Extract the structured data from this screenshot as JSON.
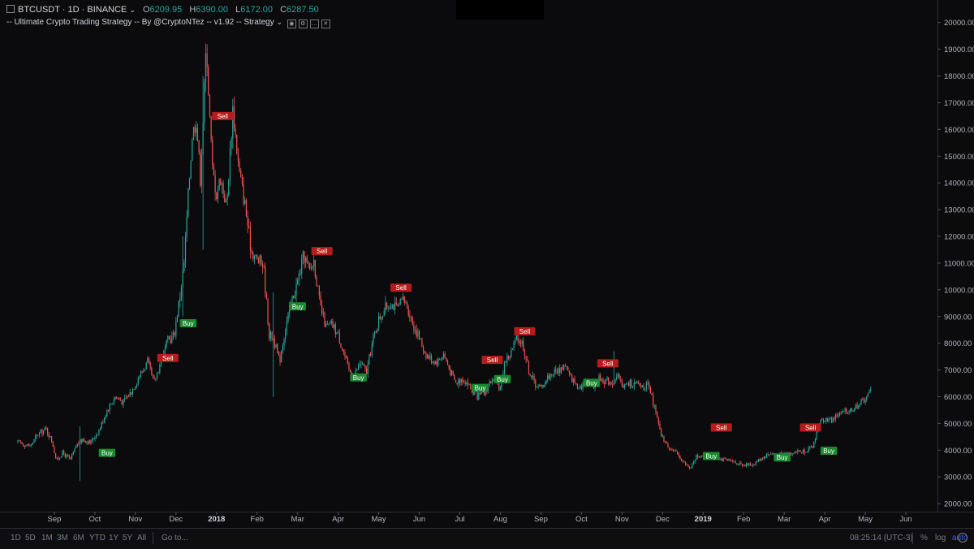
{
  "header": {
    "symbol": "BTCUSDT · 1D · BINANCE",
    "chevron": "⌄",
    "o_label": "O",
    "o_value": "6209.95",
    "h_label": "H",
    "h_value": "6390.00",
    "l_label": "L",
    "l_value": "6172.00",
    "c_label": "C",
    "c_value": "6287.50",
    "study_label": "-- Ultimate Crypto Trading Strategy -- By @CryptoNTez -- v1.92 -- Strategy"
  },
  "colors": {
    "background": "#0b0b0d",
    "up": "#26a69a",
    "down": "#ef5350",
    "buy_label": "#1a8a2e",
    "sell_label": "#b71c1c",
    "axis_text": "#b2b5be"
  },
  "chart_data": {
    "type": "candlestick",
    "title": "BTCUSDT · 1D · BINANCE",
    "y_axis": {
      "side": "right",
      "ticks": [
        2000,
        3000,
        4000,
        5000,
        6000,
        7000,
        8000,
        9000,
        10000,
        11000,
        12000,
        13000,
        14000,
        15000,
        16000,
        17000,
        18000,
        19000,
        20000
      ],
      "tick_labels": [
        "2000.00",
        "3000.00",
        "4000.00",
        "5000.00",
        "6000.00",
        "7000.00",
        "8000.00",
        "9000.00",
        "10000.00",
        "11000.00",
        "12000.00",
        "13000.00",
        "14000.00",
        "15000.00",
        "16000.00",
        "17000.00",
        "18000.00",
        "19000.00",
        "20000.00"
      ],
      "range": [
        1700,
        20600
      ]
    },
    "x_axis": {
      "labels": [
        "Sep",
        "Oct",
        "Nov",
        "Dec",
        "2018",
        "Feb",
        "Mar",
        "Apr",
        "May",
        "Jun",
        "Jul",
        "Aug",
        "Sep",
        "Oct",
        "Nov",
        "Dec",
        "2019",
        "Feb",
        "Mar",
        "Apr",
        "May",
        "Jun"
      ],
      "bold": [
        "2018",
        "2019"
      ],
      "month_index": [
        1,
        2,
        3,
        4,
        5,
        6,
        7,
        8,
        9,
        10,
        11,
        12,
        13,
        14,
        15,
        16,
        17,
        18,
        19,
        20,
        21,
        22
      ],
      "range": [
        0.1,
        22.7
      ]
    },
    "series_points": [
      [
        0.0,
        4300
      ],
      [
        0.3,
        4150
      ],
      [
        0.5,
        4600
      ],
      [
        0.7,
        4800
      ],
      [
        0.85,
        4300
      ],
      [
        0.95,
        3600
      ],
      [
        1.1,
        3900
      ],
      [
        1.3,
        3650
      ],
      [
        1.45,
        4200
      ],
      [
        1.6,
        4400
      ],
      [
        1.8,
        4300
      ],
      [
        2.0,
        4750
      ],
      [
        2.2,
        5500
      ],
      [
        2.4,
        6000
      ],
      [
        2.6,
        5800
      ],
      [
        2.8,
        6200
      ],
      [
        3.0,
        6800
      ],
      [
        3.2,
        7300
      ],
      [
        3.35,
        6500
      ],
      [
        3.5,
        7200
      ],
      [
        3.7,
        8100
      ],
      [
        3.85,
        8300
      ],
      [
        4.0,
        9800
      ],
      [
        4.1,
        11000
      ],
      [
        4.2,
        13500
      ],
      [
        4.3,
        15800
      ],
      [
        4.4,
        16400
      ],
      [
        4.5,
        14200
      ],
      [
        4.6,
        17500
      ],
      [
        4.65,
        19300
      ],
      [
        4.72,
        16800
      ],
      [
        4.8,
        14500
      ],
      [
        4.9,
        13600
      ],
      [
        5.0,
        14200
      ],
      [
        5.15,
        13100
      ],
      [
        5.3,
        16800
      ],
      [
        5.45,
        14500
      ],
      [
        5.6,
        13200
      ],
      [
        5.75,
        11500
      ],
      [
        5.9,
        11100
      ],
      [
        6.05,
        11000
      ],
      [
        6.2,
        8300
      ],
      [
        6.3,
        8200
      ],
      [
        6.45,
        7300
      ],
      [
        6.6,
        8600
      ],
      [
        6.75,
        9600
      ],
      [
        6.9,
        10300
      ],
      [
        7.05,
        11300
      ],
      [
        7.2,
        10700
      ],
      [
        7.3,
        11100
      ],
      [
        7.45,
        9400
      ],
      [
        7.6,
        8600
      ],
      [
        7.75,
        8700
      ],
      [
        7.9,
        8300
      ],
      [
        8.05,
        7600
      ],
      [
        8.15,
        7000
      ],
      [
        8.3,
        6800
      ],
      [
        8.45,
        7300
      ],
      [
        8.6,
        6900
      ],
      [
        8.75,
        8100
      ],
      [
        8.9,
        8900
      ],
      [
        9.05,
        9300
      ],
      [
        9.2,
        9500
      ],
      [
        9.35,
        9300
      ],
      [
        9.5,
        9600
      ],
      [
        9.6,
        9400
      ],
      [
        9.75,
        8700
      ],
      [
        9.9,
        8200
      ],
      [
        10.05,
        7600
      ],
      [
        10.2,
        7400
      ],
      [
        10.35,
        7300
      ],
      [
        10.5,
        7600
      ],
      [
        10.65,
        7000
      ],
      [
        10.8,
        6500
      ],
      [
        10.95,
        6700
      ],
      [
        11.1,
        6500
      ],
      [
        11.2,
        6200
      ],
      [
        11.35,
        6000
      ],
      [
        11.5,
        6100
      ],
      [
        11.65,
        6600
      ],
      [
        11.8,
        6500
      ],
      [
        11.9,
        6300
      ],
      [
        12.0,
        7300
      ],
      [
        12.15,
        7600
      ],
      [
        12.3,
        8200
      ],
      [
        12.45,
        8000
      ],
      [
        12.6,
        7000
      ],
      [
        12.75,
        6500
      ],
      [
        12.9,
        6300
      ],
      [
        13.05,
        6700
      ],
      [
        13.2,
        6900
      ],
      [
        13.35,
        7000
      ],
      [
        13.5,
        7200
      ],
      [
        13.6,
        6800
      ],
      [
        13.75,
        6500
      ],
      [
        13.9,
        6400
      ],
      [
        14.05,
        6600
      ],
      [
        14.2,
        6450
      ],
      [
        14.35,
        6700
      ],
      [
        14.5,
        6600
      ],
      [
        14.65,
        6550
      ],
      [
        14.8,
        6700
      ],
      [
        14.95,
        6400
      ],
      [
        15.1,
        6500
      ],
      [
        15.25,
        6450
      ],
      [
        15.4,
        6400
      ],
      [
        15.55,
        6400
      ],
      [
        15.7,
        5600
      ],
      [
        15.85,
        4600
      ],
      [
        16.0,
        4200
      ],
      [
        16.15,
        4000
      ],
      [
        16.3,
        3800
      ],
      [
        16.45,
        3500
      ],
      [
        16.6,
        3300
      ],
      [
        16.75,
        3850
      ],
      [
        16.9,
        3700
      ],
      [
        17.05,
        3800
      ],
      [
        17.2,
        3900
      ],
      [
        17.35,
        3650
      ],
      [
        17.5,
        3600
      ],
      [
        17.65,
        3550
      ],
      [
        17.8,
        3500
      ],
      [
        17.95,
        3450
      ],
      [
        18.1,
        3450
      ],
      [
        18.25,
        3600
      ],
      [
        18.4,
        3750
      ],
      [
        18.55,
        3900
      ],
      [
        18.7,
        3800
      ],
      [
        18.85,
        3850
      ],
      [
        19.0,
        3900
      ],
      [
        19.15,
        3950
      ],
      [
        19.3,
        3950
      ],
      [
        19.45,
        4000
      ],
      [
        19.6,
        4100
      ],
      [
        19.75,
        5000
      ],
      [
        19.9,
        5200
      ],
      [
        20.05,
        5100
      ],
      [
        20.2,
        5300
      ],
      [
        20.35,
        5400
      ],
      [
        20.5,
        5500
      ],
      [
        20.65,
        5600
      ],
      [
        20.8,
        5800
      ],
      [
        20.95,
        6000
      ],
      [
        21.05,
        6287
      ]
    ],
    "annotations": [
      {
        "text": "Buy",
        "x": 2.3,
        "y": 3900,
        "kind": "buy"
      },
      {
        "text": "Sell",
        "x": 3.8,
        "y": 7450,
        "kind": "sell"
      },
      {
        "text": "Buy",
        "x": 4.3,
        "y": 8750,
        "kind": "buy"
      },
      {
        "text": "Sell",
        "x": 5.15,
        "y": 16500,
        "kind": "sell"
      },
      {
        "text": "Buy",
        "x": 7.0,
        "y": 9380,
        "kind": "buy"
      },
      {
        "text": "Sell",
        "x": 7.6,
        "y": 11450,
        "kind": "sell"
      },
      {
        "text": "Buy",
        "x": 8.5,
        "y": 6720,
        "kind": "buy"
      },
      {
        "text": "Sell",
        "x": 9.55,
        "y": 10080,
        "kind": "sell"
      },
      {
        "text": "Buy",
        "x": 11.5,
        "y": 6330,
        "kind": "buy"
      },
      {
        "text": "Sell",
        "x": 11.8,
        "y": 7380,
        "kind": "sell"
      },
      {
        "text": "Buy",
        "x": 12.05,
        "y": 6660,
        "kind": "buy"
      },
      {
        "text": "Sell",
        "x": 12.6,
        "y": 8450,
        "kind": "sell"
      },
      {
        "text": "Buy",
        "x": 14.25,
        "y": 6520,
        "kind": "buy"
      },
      {
        "text": "Sell",
        "x": 14.65,
        "y": 7250,
        "kind": "sell"
      },
      {
        "text": "Sell",
        "x": 17.45,
        "y": 4850,
        "kind": "sell"
      },
      {
        "text": "Buy",
        "x": 17.2,
        "y": 3780,
        "kind": "buy"
      },
      {
        "text": "Buy",
        "x": 18.95,
        "y": 3730,
        "kind": "buy"
      },
      {
        "text": "Sell",
        "x": 19.65,
        "y": 4850,
        "kind": "sell"
      },
      {
        "text": "Buy",
        "x": 20.1,
        "y": 3980,
        "kind": "buy"
      }
    ],
    "grid": false
  },
  "bottom_bar": {
    "periods": [
      "1D",
      "5D",
      "1M",
      "3M",
      "6M",
      "YTD",
      "1Y",
      "5Y",
      "All"
    ],
    "goto": "Go to...",
    "clock": "08:25:14 (UTC-3)",
    "percent": "%",
    "log": "log",
    "auto": "auto"
  }
}
